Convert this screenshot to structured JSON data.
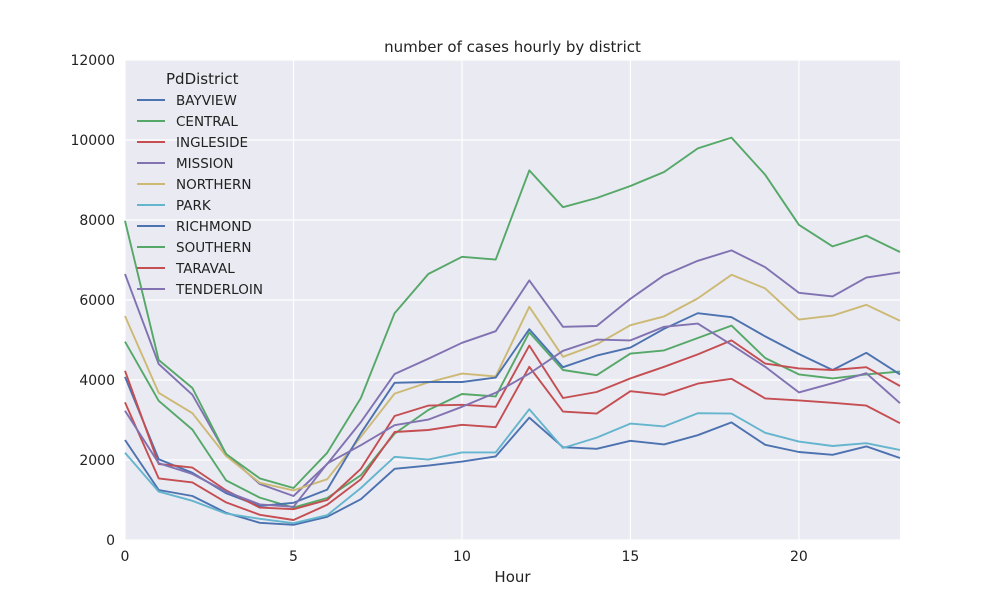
{
  "chart_data": {
    "type": "line",
    "title": "number of cases hourly by district",
    "xlabel": "Hour",
    "ylabel": "",
    "xlim": [
      0,
      23
    ],
    "ylim": [
      0,
      12000
    ],
    "xticks": [
      0,
      5,
      10,
      15,
      20
    ],
    "yticks": [
      0,
      2000,
      4000,
      6000,
      8000,
      10000,
      12000
    ],
    "grid": true,
    "legend": {
      "title": "PdDistrict",
      "placement": "top-left"
    },
    "x": [
      0,
      1,
      2,
      3,
      4,
      5,
      6,
      7,
      8,
      9,
      10,
      11,
      12,
      13,
      14,
      15,
      16,
      17,
      18,
      19,
      20,
      21,
      22,
      23
    ],
    "series": [
      {
        "name": "BAYVIEW",
        "color": "#4c72b0",
        "values": [
          2500,
          1250,
          1100,
          680,
          430,
          380,
          580,
          1020,
          1780,
          1860,
          1960,
          2090,
          3060,
          2320,
          2280,
          2480,
          2390,
          2620,
          2940,
          2380,
          2200,
          2130,
          2340,
          2050
        ]
      },
      {
        "name": "CENTRAL",
        "color": "#55a868",
        "values": [
          4960,
          3480,
          2760,
          1490,
          1060,
          810,
          1050,
          1620,
          2660,
          3250,
          3650,
          3590,
          5190,
          4250,
          4120,
          4660,
          4740,
          5050,
          5360,
          4550,
          4140,
          4040,
          4140,
          4210
        ]
      },
      {
        "name": "INGLESIDE",
        "color": "#c44e52",
        "values": [
          3440,
          1540,
          1440,
          940,
          630,
          500,
          880,
          1520,
          2700,
          2750,
          2880,
          2820,
          4330,
          3210,
          3160,
          3720,
          3630,
          3910,
          4030,
          3540,
          3490,
          3430,
          3360,
          2920
        ]
      },
      {
        "name": "MISSION",
        "color": "#8172b2",
        "values": [
          6650,
          4400,
          3630,
          2150,
          1400,
          1100,
          1900,
          2950,
          4150,
          4530,
          4930,
          5220,
          6490,
          5330,
          5350,
          6030,
          6620,
          6980,
          7240,
          6820,
          6180,
          6090,
          6560,
          6690
        ]
      },
      {
        "name": "NORTHERN",
        "color": "#ccb974",
        "values": [
          5600,
          3680,
          3170,
          2100,
          1430,
          1240,
          1520,
          2580,
          3660,
          3940,
          4160,
          4090,
          5830,
          4580,
          4890,
          5370,
          5590,
          6040,
          6630,
          6290,
          5510,
          5610,
          5880,
          5480
        ]
      },
      {
        "name": "PARK",
        "color": "#64b5cd",
        "values": [
          2180,
          1210,
          980,
          660,
          530,
          420,
          620,
          1300,
          2080,
          2010,
          2190,
          2190,
          3270,
          2300,
          2560,
          2910,
          2840,
          3170,
          3160,
          2680,
          2460,
          2350,
          2420,
          2250
        ]
      },
      {
        "name": "RICHMOND",
        "color": "#4c72b0",
        "values": [
          4080,
          2020,
          1680,
          1170,
          850,
          930,
          1260,
          2670,
          3930,
          3950,
          3950,
          4060,
          5270,
          4320,
          4610,
          4810,
          5280,
          5670,
          5570,
          5090,
          4650,
          4250,
          4680,
          4140
        ]
      },
      {
        "name": "SOUTHERN",
        "color": "#55a868",
        "values": [
          7980,
          4500,
          3800,
          2150,
          1540,
          1300,
          2180,
          3550,
          5670,
          6650,
          7080,
          7010,
          9240,
          8320,
          8550,
          8850,
          9200,
          9790,
          10060,
          9130,
          7880,
          7340,
          7610,
          7200
        ]
      },
      {
        "name": "TARAVAL",
        "color": "#c44e52",
        "values": [
          4230,
          1900,
          1810,
          1240,
          810,
          770,
          1000,
          1780,
          3100,
          3360,
          3380,
          3330,
          4860,
          3550,
          3700,
          4040,
          4330,
          4640,
          4990,
          4410,
          4290,
          4250,
          4320,
          3850
        ]
      },
      {
        "name": "TENDERLOIN",
        "color": "#8172b2",
        "values": [
          3230,
          1920,
          1650,
          1210,
          890,
          830,
          1910,
          2370,
          2870,
          3010,
          3330,
          3680,
          4160,
          4730,
          5010,
          4990,
          5330,
          5410,
          4880,
          4330,
          3690,
          3920,
          4170,
          3420
        ]
      }
    ]
  }
}
